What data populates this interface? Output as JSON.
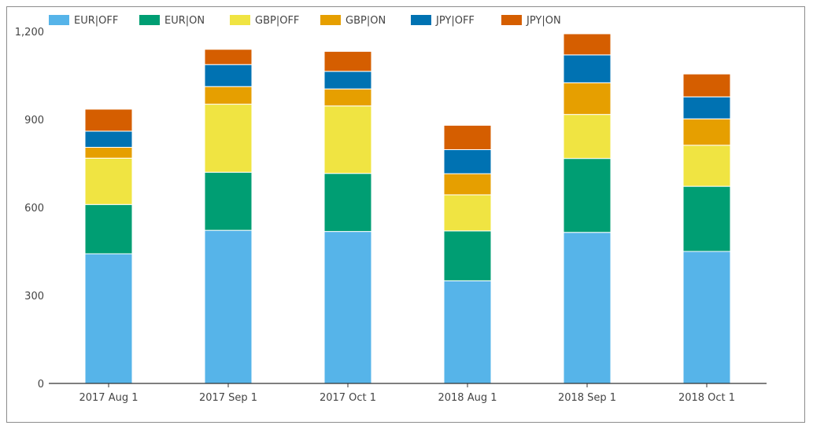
{
  "chart_data": {
    "type": "bar",
    "stacked": true,
    "title": "",
    "xlabel": "",
    "ylabel": "",
    "categories": [
      "2017 Aug 1",
      "2017 Sep 1",
      "2017 Oct 1",
      "2018 Aug 1",
      "2018 Sep 1",
      "2018 Oct 1"
    ],
    "series": [
      {
        "name": "EUR|OFF",
        "color": "#56b4e9",
        "values": [
          442,
          522,
          518,
          350,
          515,
          450
        ]
      },
      {
        "name": "EUR|ON",
        "color": "#009e73",
        "values": [
          168,
          198,
          198,
          170,
          252,
          222
        ]
      },
      {
        "name": "GBP|OFF",
        "color": "#f0e442",
        "values": [
          158,
          232,
          230,
          123,
          150,
          140
        ]
      },
      {
        "name": "GBP|ON",
        "color": "#e69f00",
        "values": [
          37,
          60,
          58,
          72,
          108,
          90
        ]
      },
      {
        "name": "JPY|OFF",
        "color": "#0072b2",
        "values": [
          55,
          75,
          60,
          82,
          95,
          75
        ]
      },
      {
        "name": "JPY|ON",
        "color": "#d55e00",
        "values": [
          75,
          52,
          68,
          83,
          72,
          78
        ]
      }
    ],
    "ylim": [
      0,
      1200
    ],
    "yticks": [
      0,
      300,
      600,
      900,
      1200
    ],
    "ytick_labels": [
      "0",
      "300",
      "600",
      "900",
      "1,200"
    ],
    "grid": false,
    "legend_position": "top-left"
  }
}
